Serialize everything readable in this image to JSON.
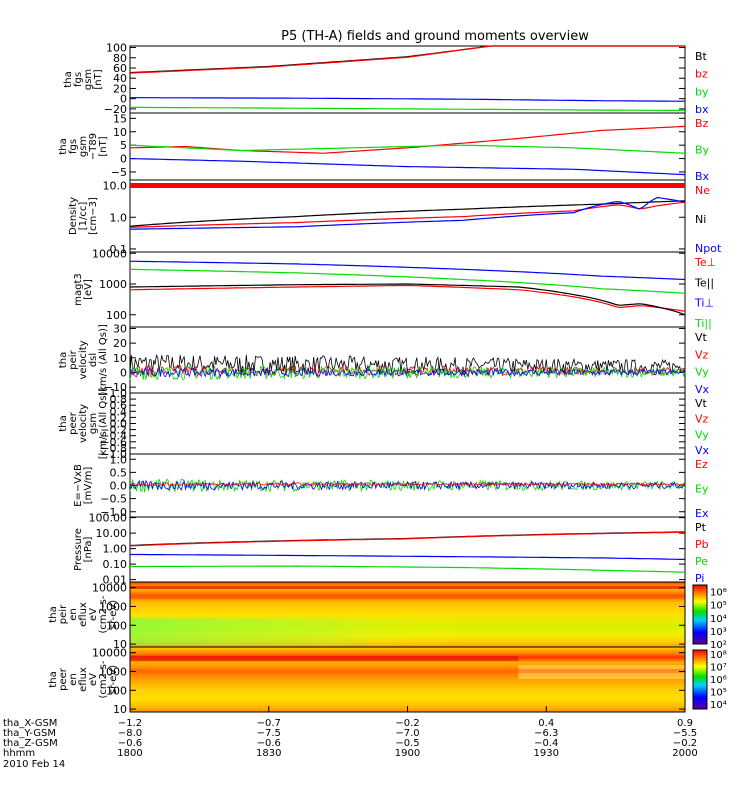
{
  "title": "P5 (TH-A) fields and ground moments overview",
  "colors": {
    "black": "#000000",
    "red": "#ff0000",
    "green": "#00dd00",
    "blue": "#0000ff",
    "white": "#ffffff"
  },
  "chart_data": [
    {
      "type": "line",
      "panel": "fgs",
      "ylabel": [
        "tha",
        "fgs",
        "gsm",
        "[nT]"
      ],
      "yticks": [
        "100",
        "80",
        "60",
        "40",
        "20",
        "0",
        "−20"
      ],
      "ylim": [
        -28,
        103
      ],
      "legend": [
        "Bt",
        "bz",
        "by",
        "bx"
      ],
      "series": [
        {
          "name": "Bt",
          "color": "black",
          "x": [
            0,
            0.25,
            0.5,
            0.65,
            1.0
          ],
          "values": [
            51,
            63,
            82,
            103,
            103
          ]
        },
        {
          "name": "bz",
          "color": "red",
          "x": [
            0,
            0.25,
            0.5,
            0.65,
            1.0
          ],
          "values": [
            50,
            62,
            81,
            103,
            103
          ]
        },
        {
          "name": "by",
          "color": "green",
          "x": [
            0,
            0.2,
            0.5,
            0.8,
            1.0
          ],
          "values": [
            -17,
            -18,
            -20,
            -22,
            -23
          ]
        },
        {
          "name": "bx",
          "color": "blue",
          "x": [
            0,
            0.3,
            0.6,
            0.85,
            1.0
          ],
          "values": [
            2,
            1,
            -1,
            -4,
            -5
          ]
        }
      ]
    },
    {
      "type": "line",
      "panel": "fgs-t89",
      "ylabel": [
        "tha",
        "fgs",
        "gsm",
        "−T89",
        "[nT]"
      ],
      "yticks": [
        "15",
        "10",
        "5",
        "0",
        "−5"
      ],
      "ylim": [
        -8,
        17
      ],
      "legend": [
        "Bz",
        "By",
        "Bx"
      ],
      "series": [
        {
          "name": "Bz",
          "color": "red",
          "x": [
            0,
            0.1,
            0.2,
            0.35,
            0.5,
            0.7,
            0.85,
            1.0
          ],
          "values": [
            4,
            4.5,
            3,
            2,
            4,
            7.5,
            10.5,
            12
          ]
        },
        {
          "name": "By",
          "color": "green",
          "x": [
            0,
            0.2,
            0.4,
            0.6,
            0.8,
            1.0
          ],
          "values": [
            5,
            3,
            4,
            5,
            4,
            2
          ]
        },
        {
          "name": "Bx",
          "color": "blue",
          "x": [
            0,
            0.2,
            0.5,
            0.8,
            1.0
          ],
          "values": [
            0,
            -1,
            -3,
            -4,
            -6
          ]
        }
      ]
    },
    {
      "type": "line",
      "panel": "density",
      "yscale": "log",
      "ylabel": [
        "Density",
        "[1/cc]",
        "[cm−3]"
      ],
      "yticks": [
        "10.0",
        "1.0",
        "0.1"
      ],
      "ylim": [
        0.08,
        15
      ],
      "legend": [
        "Ne",
        "Ni",
        "Npot"
      ],
      "series": [
        {
          "name": "Ne",
          "color": "red",
          "x": [
            0,
            0.3,
            0.6,
            0.8,
            0.88,
            0.92,
            0.95,
            1.0
          ],
          "values": [
            0.48,
            0.68,
            1.05,
            1.6,
            2.5,
            1.8,
            2.3,
            3.0
          ]
        },
        {
          "name": "Ni",
          "color": "black",
          "x": [
            0,
            0.3,
            0.6,
            0.85,
            1.0
          ],
          "values": [
            0.52,
            1.05,
            1.8,
            2.6,
            3.3
          ]
        },
        {
          "name": "Npot",
          "color": "blue",
          "x": [
            0,
            0.3,
            0.6,
            0.8,
            0.88,
            0.92,
            0.95,
            1.0
          ],
          "values": [
            0.42,
            0.5,
            0.8,
            1.4,
            3.2,
            1.7,
            4.2,
            3.0
          ]
        }
      ]
    },
    {
      "type": "line",
      "panel": "temperature",
      "yscale": "log",
      "ylabel": [
        "magt3",
        "[eV]"
      ],
      "yticks": [
        "10000",
        "1000",
        "100"
      ],
      "ylim": [
        40,
        11000
      ],
      "legend": [
        "Te⊥",
        "Te||",
        "Ti⊥",
        "Ti||"
      ],
      "series": [
        {
          "name": "Te⊥",
          "color": "red",
          "x": [
            0,
            0.3,
            0.5,
            0.7,
            0.8,
            0.88,
            0.92,
            1.0
          ],
          "values": [
            650,
            800,
            900,
            650,
            380,
            170,
            200,
            130
          ]
        },
        {
          "name": "Te||",
          "color": "black",
          "x": [
            0,
            0.3,
            0.5,
            0.7,
            0.8,
            0.88,
            0.92,
            1.0
          ],
          "values": [
            800,
            950,
            1000,
            800,
            450,
            200,
            230,
            100
          ]
        },
        {
          "name": "Ti⊥",
          "color": "blue",
          "x": [
            0,
            0.3,
            0.6,
            0.85,
            1.0
          ],
          "values": [
            5500,
            4500,
            3000,
            1800,
            1400
          ]
        },
        {
          "name": "Ti||",
          "color": "green",
          "x": [
            0,
            0.3,
            0.6,
            0.85,
            1.0
          ],
          "values": [
            3000,
            2300,
            1400,
            700,
            500
          ]
        }
      ]
    },
    {
      "type": "line",
      "panel": "peir-velocity",
      "ylabel": [
        "tha",
        "peir",
        "velocity",
        "dsl",
        "[km/s (All Qs)]"
      ],
      "yticks": [
        "30",
        "20",
        "10",
        "0",
        "−10"
      ],
      "ylim": [
        -14,
        31
      ],
      "legend": [
        "Vt",
        "Vz",
        "Vy",
        "Vx"
      ],
      "series": [
        {
          "name": "Vt",
          "color": "black",
          "x": [
            0,
            1
          ],
          "values": [
            6,
            4
          ],
          "noise": 7
        },
        {
          "name": "Vz",
          "color": "red",
          "x": [
            0,
            1
          ],
          "values": [
            1,
            1
          ],
          "noise": 4
        },
        {
          "name": "Vy",
          "color": "green",
          "x": [
            0,
            1
          ],
          "values": [
            0,
            0
          ],
          "noise": 5
        },
        {
          "name": "Vx",
          "color": "blue",
          "x": [
            0,
            1
          ],
          "values": [
            0,
            0
          ],
          "noise": 3
        }
      ]
    },
    {
      "type": "line",
      "panel": "peer-velocity",
      "ylabel": [
        "tha",
        "peer",
        "velocity",
        "gsm",
        "[km/s (All Qs)]"
      ],
      "yticks": [
        "1.0",
        "0.8",
        "0.6",
        "0.4",
        "0.2",
        "0.0",
        "−0.2",
        "−0.4",
        "−0.6",
        "−0.8",
        "−1.0"
      ],
      "ylim": [
        -1,
        1
      ],
      "legend": [
        "Vt",
        "Vz",
        "Vy",
        "Vx"
      ],
      "series": []
    },
    {
      "type": "line",
      "panel": "efield",
      "ylabel": [
        "E=−VxB",
        "[mV/m]"
      ],
      "yticks": [
        "1.0",
        "0.5",
        "0.0",
        "−0.5",
        "−1.0"
      ],
      "ylim": [
        -1.2,
        1.2
      ],
      "legend": [
        "Ez",
        "Ey",
        "Ex"
      ],
      "series": [
        {
          "name": "Ey",
          "color": "green",
          "x": [
            0,
            1
          ],
          "values": [
            0,
            0
          ],
          "noise": 0.25
        },
        {
          "name": "Ex",
          "color": "blue",
          "x": [
            0,
            1
          ],
          "values": [
            0,
            0
          ],
          "noise": 0.18
        },
        {
          "name": "Ez",
          "color": "red",
          "x": [
            0,
            1
          ],
          "values": [
            0.05,
            0.05
          ],
          "noise": 0.06
        }
      ]
    },
    {
      "type": "line",
      "panel": "pressure",
      "yscale": "log",
      "ylabel": [
        "Pressure",
        "[nPa]"
      ],
      "yticks": [
        "100.00",
        "10.00",
        "1.00",
        "0.10",
        "0.01"
      ],
      "ylim": [
        0.007,
        110
      ],
      "legend": [
        "Pt",
        "Pb",
        "Pe",
        "Pi"
      ],
      "series": [
        {
          "name": "Pt",
          "color": "black",
          "x": [
            0,
            0.5,
            1.0
          ],
          "values": [
            1.6,
            4.5,
            12
          ]
        },
        {
          "name": "Pb",
          "color": "red",
          "x": [
            0,
            0.5,
            1.0
          ],
          "values": [
            1.5,
            4.3,
            11.5
          ]
        },
        {
          "name": "Pi",
          "color": "blue",
          "x": [
            0,
            0.3,
            0.6,
            0.85,
            1.0
          ],
          "values": [
            0.42,
            0.36,
            0.3,
            0.25,
            0.2
          ]
        },
        {
          "name": "Pe",
          "color": "green",
          "x": [
            0,
            0.3,
            0.6,
            0.85,
            1.0
          ],
          "values": [
            0.07,
            0.075,
            0.06,
            0.04,
            0.03
          ]
        }
      ]
    },
    {
      "type": "heatmap",
      "panel": "peir-eflux",
      "yscale": "log",
      "ylabel": [
        "tha",
        "peir",
        "en",
        "eflux",
        "eV",
        "(cm2-s-",
        "sr-eV)"
      ],
      "yticks": [
        "10000",
        "1000",
        "100",
        "10"
      ],
      "ylim": [
        7,
        20000
      ],
      "colorbar_ticks": [
        "10⁶",
        "10⁵",
        "10⁴",
        "10³",
        "10²"
      ],
      "colorbar_range": [
        2,
        6.5
      ]
    },
    {
      "type": "heatmap",
      "panel": "peer-eflux",
      "yscale": "log",
      "ylabel": [
        "tha",
        "peer",
        "en",
        "eflux",
        "eV",
        "(cm2-s-",
        "sr-eV)"
      ],
      "yticks": [
        "10000",
        "1000",
        "100",
        "10"
      ],
      "ylim": [
        7,
        20000
      ],
      "colorbar_ticks": [
        "10⁸",
        "10⁷",
        "10⁶",
        "10⁵",
        "10⁴"
      ],
      "colorbar_range": [
        3.6,
        8.3
      ]
    }
  ],
  "xaxis": {
    "rows": [
      {
        "label": "tha_X-GSM",
        "values": [
          "−1.2",
          "−0.7",
          "−0.2",
          "0.4",
          "0.9"
        ]
      },
      {
        "label": "tha_Y-GSM",
        "values": [
          "−8.0",
          "−7.5",
          "−7.0",
          "−6.3",
          "−5.5"
        ]
      },
      {
        "label": "tha_Z-GSM",
        "values": [
          "−0.6",
          "−0.6",
          "−0.5",
          "−0.4",
          "−0.2"
        ]
      },
      {
        "label": "hhmm",
        "values": [
          "1800",
          "1830",
          "1900",
          "1930",
          "2000"
        ]
      }
    ],
    "date": "2010 Feb 14"
  }
}
